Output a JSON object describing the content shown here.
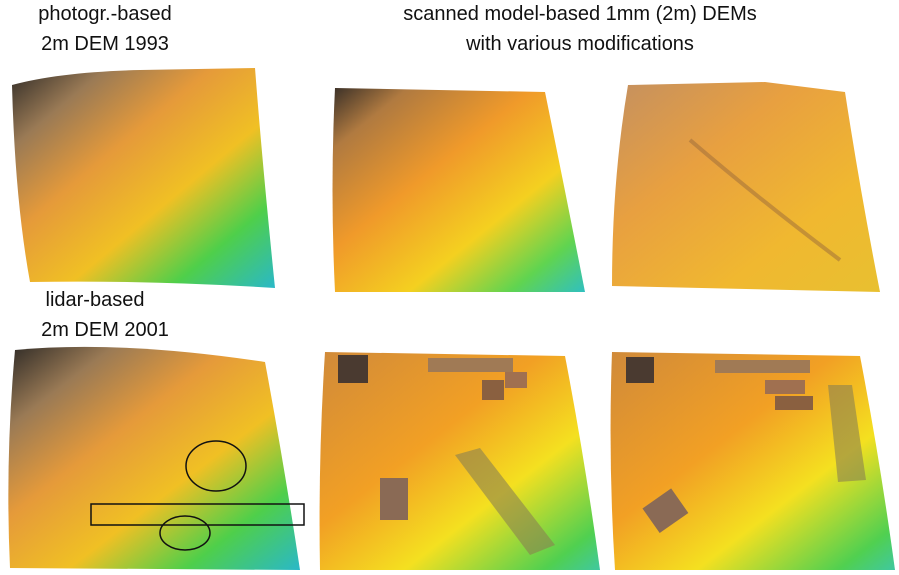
{
  "header": {
    "left_title": [
      "photogr.-based",
      "2m DEM 1993"
    ],
    "right_title": [
      "scanned model-based 1mm (2m) DEMs",
      "with various modifications"
    ]
  },
  "lower_left_title": [
    "lidar-based",
    "2m DEM 2001"
  ]
}
